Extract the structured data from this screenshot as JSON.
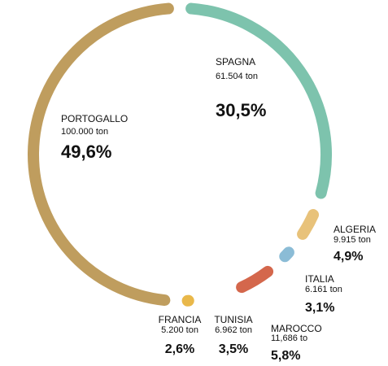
{
  "chart_data": {
    "type": "donut",
    "categories": [
      "SPAGNA",
      "ALGERIA",
      "ITALIA",
      "MAROCCO",
      "TUNISIA",
      "FRANCIA",
      "PORTOGALLO"
    ],
    "quantities": [
      "61.504 ton",
      "9.915 ton",
      "6.161 ton",
      "11,686 to",
      "6.962 ton",
      "5.200 ton",
      "100.000 ton"
    ],
    "values": [
      30.5,
      4.9,
      3.1,
      5.8,
      3.5,
      2.6,
      49.6
    ],
    "value_labels": [
      "30,5%",
      "4,9%",
      "3,1%",
      "5,8%",
      "3,5%",
      "2,6%",
      "49,6%"
    ],
    "colors": [
      "#7dc3ad",
      "#e8c27a",
      "#8bbcd6",
      "#d4674c",
      "#ffffff",
      "#e9b84a",
      "#bf9d5e"
    ]
  }
}
